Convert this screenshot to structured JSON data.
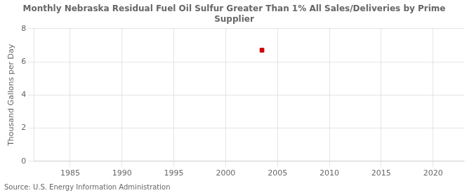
{
  "chart_data": {
    "type": "scatter",
    "title": "Monthly Nebraska Residual Fuel Oil Sulfur Greater Than 1% All Sales/Deliveries by Prime\nSupplier",
    "ylabel": "Thousand Gallons per Day",
    "annotation": "Source: U.S. Energy Information Administration",
    "x": [
      2003.5
    ],
    "values": [
      6.7
    ],
    "color": "#cc0000",
    "marker": "square",
    "xlim": [
      1981.5,
      2023
    ],
    "ylim": [
      0,
      8
    ],
    "xticks": [
      1985,
      1990,
      1995,
      2000,
      2005,
      2010,
      2015,
      2020
    ],
    "yticks": [
      0,
      2,
      4,
      6,
      8
    ],
    "grid": true
  }
}
